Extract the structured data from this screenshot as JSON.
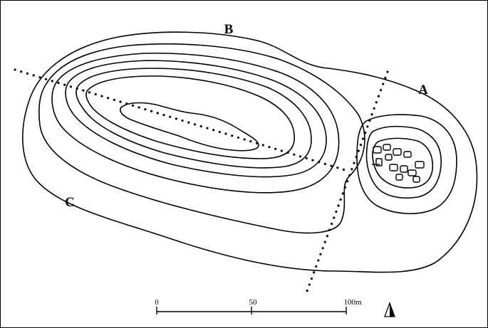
{
  "labels": {
    "a": "A",
    "b": "B",
    "c": "C"
  },
  "scale_bar": {
    "ticks": [
      "0",
      "50",
      "100m"
    ]
  },
  "north_arrow": {
    "icon": "north-arrow-icon"
  },
  "colors": {
    "ink": "#000000",
    "paper": "#ffffff"
  }
}
